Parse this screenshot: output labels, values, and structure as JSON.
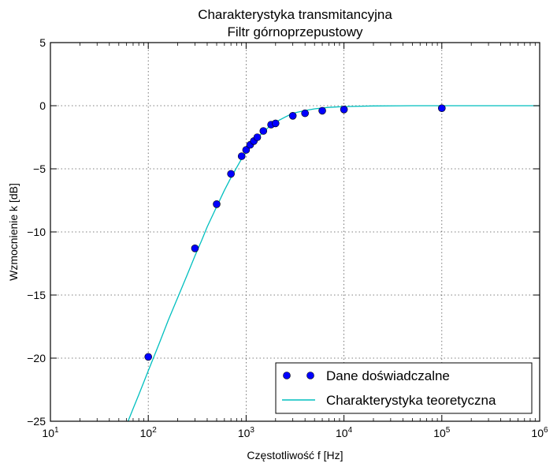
{
  "chart_data": {
    "type": "scatter",
    "title": "Charakterystyka transmitancyjna",
    "subtitle": "Filtr górnoprzepustowy",
    "xlabel": "Częstotliwość f [Hz]",
    "ylabel": "Wzmocnienie k [dB]",
    "xscale": "log",
    "xlim": [
      10,
      1000000
    ],
    "ylim": [
      -25,
      5
    ],
    "grid": true,
    "legend_position": "bottom-right",
    "x_ticks": [
      {
        "value": 10,
        "base": "10",
        "exp": "1"
      },
      {
        "value": 100,
        "base": "10",
        "exp": "2"
      },
      {
        "value": 1000,
        "base": "10",
        "exp": "3"
      },
      {
        "value": 10000,
        "base": "10",
        "exp": "4"
      },
      {
        "value": 100000,
        "base": "10",
        "exp": "5"
      },
      {
        "value": 1000000,
        "base": "10",
        "exp": "6"
      }
    ],
    "y_ticks": [
      {
        "value": 5,
        "label": "5"
      },
      {
        "value": 0,
        "label": "0"
      },
      {
        "value": -5,
        "label": "−5"
      },
      {
        "value": -10,
        "label": "−10"
      },
      {
        "value": -15,
        "label": "−15"
      },
      {
        "value": -20,
        "label": "−20"
      },
      {
        "value": -25,
        "label": "−25"
      }
    ],
    "series": [
      {
        "name": "Dane doświadczalne",
        "kind": "markers",
        "color": "#0000ff",
        "x": [
          100,
          300,
          500,
          700,
          900,
          1000,
          1100,
          1200,
          1300,
          1500,
          1800,
          2000,
          3000,
          4000,
          6000,
          10000,
          100000
        ],
        "y": [
          -19.9,
          -11.3,
          -7.8,
          -5.4,
          -4.0,
          -3.5,
          -3.1,
          -2.8,
          -2.5,
          -2.0,
          -1.5,
          -1.4,
          -0.8,
          -0.6,
          -0.4,
          -0.3,
          -0.2
        ]
      },
      {
        "name": "Charakterystyka teoretyczna",
        "kind": "line",
        "color": "#00bfbf",
        "x": [
          60,
          70,
          80,
          90,
          100,
          130,
          160,
          200,
          250,
          300,
          350,
          400,
          500,
          600,
          700,
          800,
          900,
          1000,
          1200,
          1400,
          1700,
          2000,
          2500,
          3000,
          4000,
          5000,
          7000,
          10000,
          20000,
          50000,
          100000,
          1000000
        ],
        "y": [
          -25.3,
          -24.0,
          -22.9,
          -21.9,
          -21.0,
          -18.8,
          -17.0,
          -15.2,
          -13.4,
          -11.9,
          -10.7,
          -9.6,
          -8.0,
          -6.7,
          -5.7,
          -4.9,
          -4.2,
          -3.7,
          -2.9,
          -2.3,
          -1.7,
          -1.3,
          -0.9,
          -0.6,
          -0.38,
          -0.25,
          -0.13,
          -0.07,
          -0.02,
          0.0,
          0.0,
          0.0
        ]
      }
    ]
  }
}
